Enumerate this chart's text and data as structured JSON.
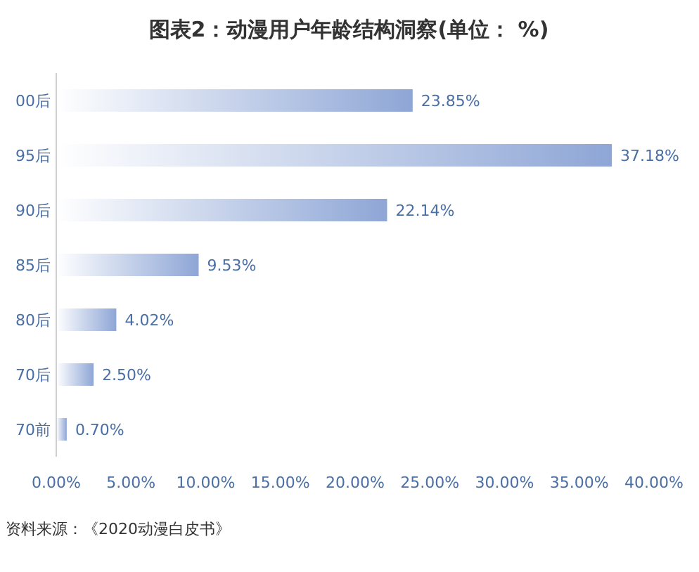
{
  "chart_data": {
    "type": "bar",
    "orientation": "horizontal",
    "title": "图表2：动漫用户年龄结构洞察(单位： %)",
    "categories": [
      "00后",
      "95后",
      "90后",
      "85后",
      "80后",
      "70后",
      "70前"
    ],
    "values": [
      23.85,
      37.18,
      22.14,
      9.53,
      4.02,
      2.5,
      0.7
    ],
    "value_labels": [
      "23.85%",
      "37.18%",
      "22.14%",
      "9.53%",
      "4.02%",
      "2.50%",
      "0.70%"
    ],
    "color": "#8ea6d6",
    "xlim": [
      0,
      40
    ],
    "xticks": [
      {
        "value": 0,
        "label": "0.00%"
      },
      {
        "value": 5,
        "label": "5.00%"
      },
      {
        "value": 10,
        "label": "10.00%"
      },
      {
        "value": 15,
        "label": "15.00%"
      },
      {
        "value": 20,
        "label": "20.00%"
      },
      {
        "value": 25,
        "label": "25.00%"
      },
      {
        "value": 30,
        "label": "30.00%"
      },
      {
        "value": 35,
        "label": "35.00%"
      },
      {
        "value": 40,
        "label": "40.00%"
      }
    ],
    "grid": false,
    "annotations": [
      "资料来源：《2020动漫白皮书》"
    ]
  }
}
